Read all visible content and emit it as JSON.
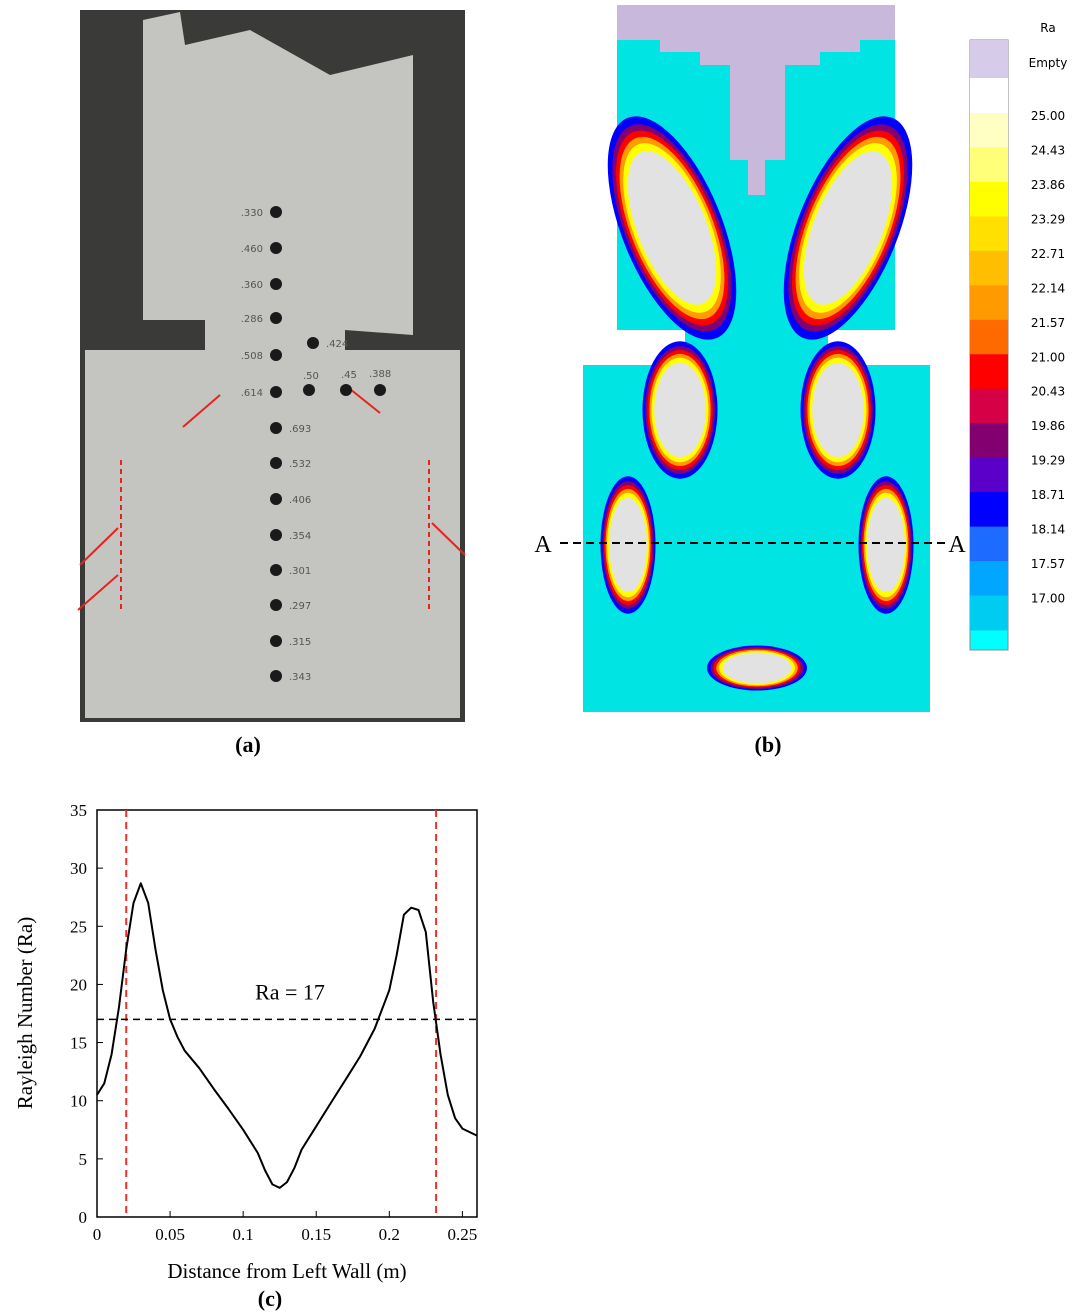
{
  "panels": {
    "a": {
      "label": "(a)",
      "hole_labels": [
        ".330",
        ".460",
        ".360",
        ".286",
        ".424",
        ".508",
        ".50",
        ".45",
        ".388",
        ".614",
        ".693",
        ".532",
        ".406",
        ".354",
        ".301",
        ".297",
        ".315",
        ".343"
      ]
    },
    "b": {
      "label": "(b)",
      "section_labels": [
        "A",
        "A"
      ],
      "colorbar_title": "Ra",
      "colorbar": [
        {
          "label": "Empty",
          "color": "#d6cbe9"
        },
        {
          "label": "25.00",
          "color": "#ffffc4"
        },
        {
          "label": "24.43",
          "color": "#ffff7a"
        },
        {
          "label": "23.86",
          "color": "#ffff00"
        },
        {
          "label": "23.29",
          "color": "#ffe000"
        },
        {
          "label": "22.71",
          "color": "#ffbf00"
        },
        {
          "label": "22.14",
          "color": "#ff9a00"
        },
        {
          "label": "21.57",
          "color": "#ff6a00"
        },
        {
          "label": "21.00",
          "color": "#ff0000"
        },
        {
          "label": "20.43",
          "color": "#d60046"
        },
        {
          "label": "19.86",
          "color": "#820070"
        },
        {
          "label": "19.29",
          "color": "#5a00c8"
        },
        {
          "label": "18.71",
          "color": "#0000ff"
        },
        {
          "label": "18.14",
          "color": "#1e6cff"
        },
        {
          "label": "17.57",
          "color": "#00a6ff"
        },
        {
          "label": "17.00",
          "color": "#00ccf2"
        }
      ]
    },
    "c": {
      "label": "(c)"
    }
  },
  "chart_data": {
    "type": "line",
    "x_label": "Distance from Left Wall (m)",
    "y_label": "Rayleigh Number (Ra)",
    "x": [
      0,
      0.005,
      0.01,
      0.015,
      0.02,
      0.025,
      0.03,
      0.035,
      0.04,
      0.045,
      0.05,
      0.055,
      0.06,
      0.07,
      0.08,
      0.09,
      0.1,
      0.11,
      0.115,
      0.12,
      0.125,
      0.13,
      0.135,
      0.14,
      0.15,
      0.16,
      0.17,
      0.18,
      0.19,
      0.2,
      0.205,
      0.21,
      0.215,
      0.22,
      0.225,
      0.23,
      0.235,
      0.24,
      0.245,
      0.25,
      0.26
    ],
    "series": [
      {
        "color": "#000000",
        "values": [
          10.5,
          11.5,
          14,
          18,
          23,
          27,
          28.7,
          27,
          23,
          19.5,
          17,
          15.5,
          14.3,
          12.8,
          11,
          9.3,
          7.5,
          5.5,
          4,
          2.8,
          2.5,
          3,
          4.2,
          5.8,
          7.8,
          9.8,
          11.8,
          13.8,
          16.2,
          19.5,
          22.5,
          26,
          26.6,
          26.4,
          24.5,
          18.5,
          14,
          10.5,
          8.5,
          7.6,
          7
        ]
      }
    ],
    "xlim": [
      0,
      0.26
    ],
    "ylim": [
      0,
      35
    ],
    "xticks": [
      0,
      0.05,
      0.1,
      0.15,
      0.2,
      0.25
    ],
    "yticks": [
      0,
      5,
      10,
      15,
      20,
      25,
      30,
      35
    ],
    "hline": {
      "value": 17,
      "label": "Ra = 17",
      "color": "#000000"
    },
    "vlines": [
      0.02,
      0.232
    ],
    "vline_color": "#e8322b"
  }
}
